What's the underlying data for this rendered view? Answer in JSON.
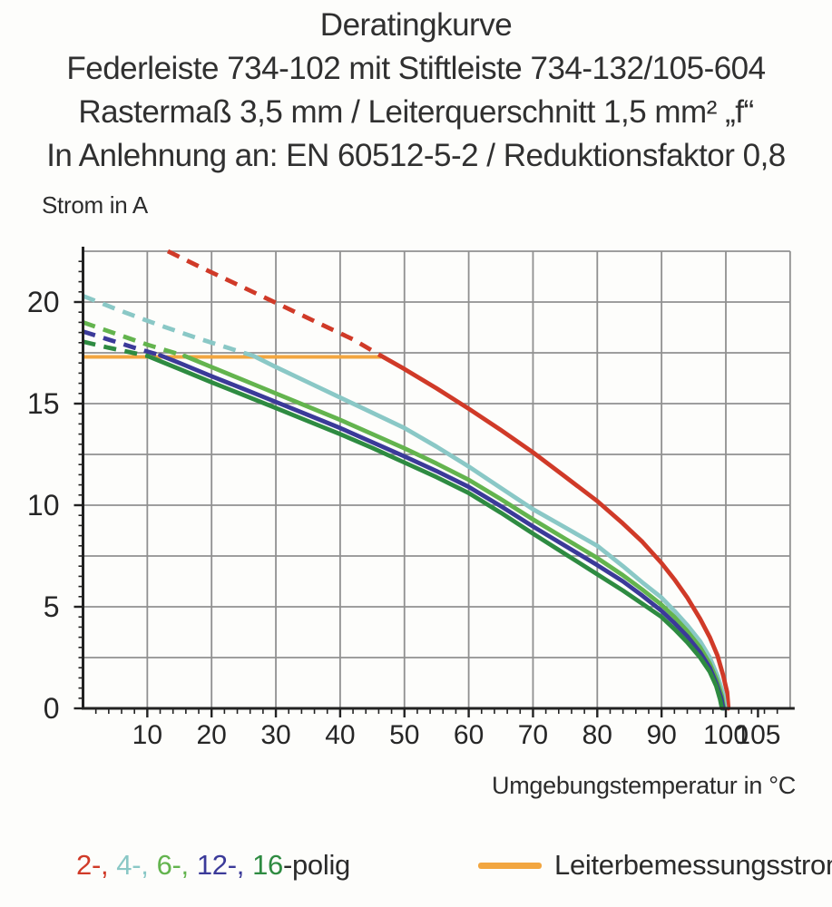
{
  "header": {
    "title": "Deratingkurve",
    "subtitle1": "Federleiste 734-102 mit Stiftleiste 734-132/105-604",
    "subtitle2": "Rastermaß 3,5 mm / Leiterquerschnitt 1,5 mm² „f“",
    "subtitle3": "In Anlehnung an: EN 60512-5-2 / Reduktionsfaktor 0,8"
  },
  "chart_data": {
    "type": "line",
    "ylabel": "Strom in A",
    "xlabel": "Umgebungstemperatur in °C",
    "xlim": [
      0,
      110
    ],
    "ylim": [
      0,
      22.5
    ],
    "x_tick_labels": [
      10,
      20,
      30,
      40,
      50,
      60,
      70,
      80,
      90,
      100,
      105
    ],
    "y_tick_labels": [
      0,
      5,
      10,
      15,
      20
    ],
    "x_gridline_step": 10,
    "y_gridline_step": 2.5,
    "x_minor_tick_step": 2,
    "y_minor_tick_step": 0.5,
    "grid_on": true,
    "grid_color": "#909090",
    "axis_color": "#222222",
    "reference_line": {
      "label": "Leiterbemessungsstrom",
      "value_a": 17.3,
      "x_start": 0,
      "x_end": 46.4,
      "color": "#f2a640"
    },
    "series": [
      {
        "name": "2-polig",
        "color": "#d03a28",
        "dashed_points": [
          [
            13.2,
            22.5
          ],
          [
            18,
            21.76
          ],
          [
            24,
            20.86
          ],
          [
            30,
            19.96
          ],
          [
            36,
            19.06
          ],
          [
            42,
            18.16
          ],
          [
            46.4,
            17.35
          ]
        ],
        "solid_points": [
          [
            46.4,
            17.35
          ],
          [
            50,
            16.7
          ],
          [
            55,
            15.75
          ],
          [
            60,
            14.75
          ],
          [
            65,
            13.7
          ],
          [
            70,
            12.6
          ],
          [
            75,
            11.4
          ],
          [
            80,
            10.2
          ],
          [
            84,
            9.1
          ],
          [
            87,
            8.2
          ],
          [
            90,
            7.15
          ],
          [
            92,
            6.35
          ],
          [
            94,
            5.45
          ],
          [
            96,
            4.4
          ],
          [
            97.5,
            3.5
          ],
          [
            98.7,
            2.6
          ],
          [
            99.6,
            1.6
          ],
          [
            100.2,
            0.8
          ],
          [
            100.4,
            0
          ]
        ]
      },
      {
        "name": "4-polig",
        "color": "#8ac8c6",
        "dashed_points": [
          [
            0,
            20.3
          ],
          [
            6,
            19.55
          ],
          [
            12,
            18.85
          ],
          [
            18,
            18.2
          ],
          [
            23,
            17.7
          ],
          [
            26.5,
            17.35
          ]
        ],
        "solid_points": [
          [
            26.5,
            17.35
          ],
          [
            30,
            16.8
          ],
          [
            35,
            16.05
          ],
          [
            40,
            15.3
          ],
          [
            45,
            14.55
          ],
          [
            50,
            13.8
          ],
          [
            55,
            12.88
          ],
          [
            60,
            11.9
          ],
          [
            65,
            10.85
          ],
          [
            70,
            9.8
          ],
          [
            75,
            8.9
          ],
          [
            80,
            8.0
          ],
          [
            84,
            7.0
          ],
          [
            87,
            6.2
          ],
          [
            90,
            5.45
          ],
          [
            92,
            4.8
          ],
          [
            94,
            4.1
          ],
          [
            96,
            3.3
          ],
          [
            97.5,
            2.5
          ],
          [
            98.7,
            1.6
          ],
          [
            99.6,
            0.7
          ],
          [
            99.9,
            0
          ]
        ]
      },
      {
        "name": "6-polig",
        "color": "#63b44e",
        "dashed_points": [
          [
            0,
            19.0
          ],
          [
            5,
            18.45
          ],
          [
            10,
            17.9
          ],
          [
            15.8,
            17.35
          ]
        ],
        "solid_points": [
          [
            15.8,
            17.35
          ],
          [
            20,
            16.8
          ],
          [
            25,
            16.15
          ],
          [
            30,
            15.5
          ],
          [
            35,
            14.85
          ],
          [
            40,
            14.2
          ],
          [
            45,
            13.5
          ],
          [
            50,
            12.8
          ],
          [
            55,
            12.05
          ],
          [
            60,
            11.25
          ],
          [
            65,
            10.3
          ],
          [
            70,
            9.3
          ],
          [
            75,
            8.35
          ],
          [
            80,
            7.4
          ],
          [
            84,
            6.55
          ],
          [
            87,
            5.85
          ],
          [
            90,
            5.1
          ],
          [
            92,
            4.5
          ],
          [
            94,
            3.8
          ],
          [
            96,
            3.0
          ],
          [
            97.5,
            2.2
          ],
          [
            98.6,
            1.4
          ],
          [
            99.4,
            0.6
          ],
          [
            99.7,
            0
          ]
        ]
      },
      {
        "name": "12-polig",
        "color": "#3b3a99",
        "dashed_points": [
          [
            0,
            18.55
          ],
          [
            4,
            18.15
          ],
          [
            8,
            17.75
          ],
          [
            12,
            17.38
          ]
        ],
        "solid_points": [
          [
            12,
            17.38
          ],
          [
            15,
            17.0
          ],
          [
            20,
            16.35
          ],
          [
            25,
            15.72
          ],
          [
            30,
            15.08
          ],
          [
            35,
            14.44
          ],
          [
            40,
            13.8
          ],
          [
            45,
            13.1
          ],
          [
            50,
            12.4
          ],
          [
            55,
            11.68
          ],
          [
            60,
            10.9
          ],
          [
            65,
            9.95
          ],
          [
            70,
            8.95
          ],
          [
            75,
            8.0
          ],
          [
            80,
            7.05
          ],
          [
            84,
            6.25
          ],
          [
            87,
            5.55
          ],
          [
            90,
            4.8
          ],
          [
            92,
            4.2
          ],
          [
            94,
            3.55
          ],
          [
            96,
            2.75
          ],
          [
            97.5,
            2.0
          ],
          [
            98.5,
            1.25
          ],
          [
            99.3,
            0.5
          ],
          [
            99.6,
            0
          ]
        ]
      },
      {
        "name": "16-polig",
        "color": "#2e8b41",
        "dashed_points": [
          [
            0,
            18.05
          ],
          [
            4,
            17.75
          ],
          [
            7,
            17.55
          ],
          [
            10,
            17.35
          ]
        ],
        "solid_points": [
          [
            10,
            17.35
          ],
          [
            15,
            16.7
          ],
          [
            20,
            16.05
          ],
          [
            25,
            15.42
          ],
          [
            30,
            14.78
          ],
          [
            35,
            14.14
          ],
          [
            40,
            13.5
          ],
          [
            45,
            12.82
          ],
          [
            50,
            12.1
          ],
          [
            55,
            11.38
          ],
          [
            60,
            10.6
          ],
          [
            65,
            9.63
          ],
          [
            70,
            8.6
          ],
          [
            75,
            7.6
          ],
          [
            80,
            6.6
          ],
          [
            84,
            5.8
          ],
          [
            87,
            5.15
          ],
          [
            90,
            4.5
          ],
          [
            92,
            3.9
          ],
          [
            94,
            3.25
          ],
          [
            96,
            2.5
          ],
          [
            97.5,
            1.8
          ],
          [
            98.5,
            1.1
          ],
          [
            99.1,
            0.45
          ],
          [
            99.4,
            0
          ]
        ]
      }
    ],
    "legend": {
      "items": [
        {
          "label": "2-,",
          "color": "#d03a28"
        },
        {
          "label": "4-,",
          "color": "#8ac8c6"
        },
        {
          "label": "6-,",
          "color": "#63b44e"
        },
        {
          "label": "12-,",
          "color": "#3b3a99"
        },
        {
          "label": "16",
          "color": "#2e8b41"
        }
      ],
      "suffix": "-polig"
    }
  }
}
